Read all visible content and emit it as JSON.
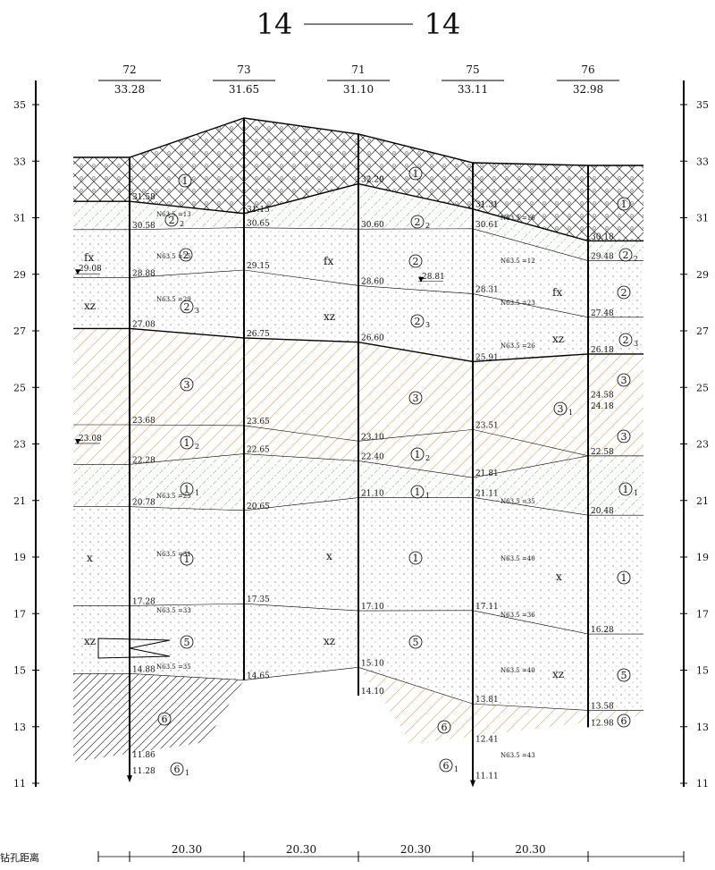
{
  "title": {
    "left": "14",
    "right": "14"
  },
  "axis_ticks": [
    "35",
    "33",
    "31",
    "29",
    "27",
    "25",
    "23",
    "21",
    "19",
    "17",
    "15",
    "13",
    "11"
  ],
  "boreholes": [
    {
      "id": "72",
      "elevation": "33.28",
      "levels": [
        "31.58",
        "30.58",
        "28.88",
        "27.08",
        "23.68",
        "22.28",
        "20.78",
        "17.28",
        "14.88",
        "11.86",
        "11.28"
      ]
    },
    {
      "id": "73",
      "elevation": "31.65",
      "levels": [
        "31.15",
        "30.65",
        "29.15",
        "26.75",
        "23.65",
        "22.65",
        "20.65",
        "17.35",
        "14.65"
      ]
    },
    {
      "id": "71",
      "elevation": "31.10",
      "levels": [
        "32.20",
        "30.60",
        "28.60",
        "26.60",
        "23.10",
        "22.40",
        "21.10",
        "17.10",
        "15.10",
        "14.10"
      ]
    },
    {
      "id": "75",
      "elevation": "33.11",
      "levels": [
        "31.31",
        "30.61",
        "28.31",
        "25.91",
        "23.51",
        "21.81",
        "21.11",
        "17.11",
        "13.81",
        "12.41",
        "11.11"
      ]
    },
    {
      "id": "76",
      "elevation": "32.98",
      "levels": [
        "30.18",
        "29.48",
        "27.48",
        "26.18",
        "24.58",
        "24.18",
        "22.58",
        "20.48",
        "16.28",
        "13.58",
        "12.98"
      ]
    }
  ],
  "water_levels": [
    "29.08",
    "23.08",
    "28.81"
  ],
  "layer_labels": [
    {
      "num": "1",
      "sub": ""
    },
    {
      "num": "2",
      "sub": "2"
    },
    {
      "num": "2",
      "sub": ""
    },
    {
      "num": "2",
      "sub": "3"
    },
    {
      "num": "3",
      "sub": ""
    },
    {
      "num": "1",
      "sub": "2"
    },
    {
      "num": "1",
      "sub": "1"
    },
    {
      "num": "1",
      "sub": ""
    },
    {
      "num": "5",
      "sub": ""
    },
    {
      "num": "6",
      "sub": ""
    },
    {
      "num": "6",
      "sub": "1"
    },
    {
      "num": "1",
      "sub": ""
    },
    {
      "num": "2",
      "sub": "2"
    },
    {
      "num": "2",
      "sub": ""
    },
    {
      "num": "2",
      "sub": "3"
    },
    {
      "num": "3",
      "sub": ""
    },
    {
      "num": "1",
      "sub": "2"
    },
    {
      "num": "1",
      "sub": "1"
    },
    {
      "num": "1",
      "sub": ""
    },
    {
      "num": "5",
      "sub": ""
    },
    {
      "num": "6",
      "sub": ""
    },
    {
      "num": "6",
      "sub": "1"
    },
    {
      "num": "1",
      "sub": ""
    },
    {
      "num": "2",
      "sub": "2"
    },
    {
      "num": "2",
      "sub": ""
    },
    {
      "num": "2",
      "sub": "3"
    },
    {
      "num": "3",
      "sub": ""
    },
    {
      "num": "3",
      "sub": "1"
    },
    {
      "num": "3",
      "sub": ""
    },
    {
      "num": "1",
      "sub": "1"
    },
    {
      "num": "1",
      "sub": ""
    },
    {
      "num": "5",
      "sub": ""
    },
    {
      "num": "6",
      "sub": ""
    }
  ],
  "n_values": [
    "N63.5 =13",
    "N63.5 =25",
    "N63.5 =29",
    "N63.5 =25",
    "N63.5 =31",
    "N63.5 =33",
    "N63.5 =35",
    "N63.5 =16",
    "N63.5 =12",
    "N63.5 =23",
    "N63.5 =26",
    "N63.5 =35",
    "N63.5 =40",
    "N63.5 =36",
    "N63.5 =40",
    "N63.5 =43"
  ],
  "soil_codes": [
    "fx",
    "fx",
    "fx",
    "xz",
    "xz",
    "xz",
    "x",
    "x",
    "x",
    "xz",
    "xz",
    "xz"
  ],
  "distance_label": "钻孔距离",
  "distances": [
    "20.30",
    "20.30",
    "20.30",
    "20.30"
  ]
}
